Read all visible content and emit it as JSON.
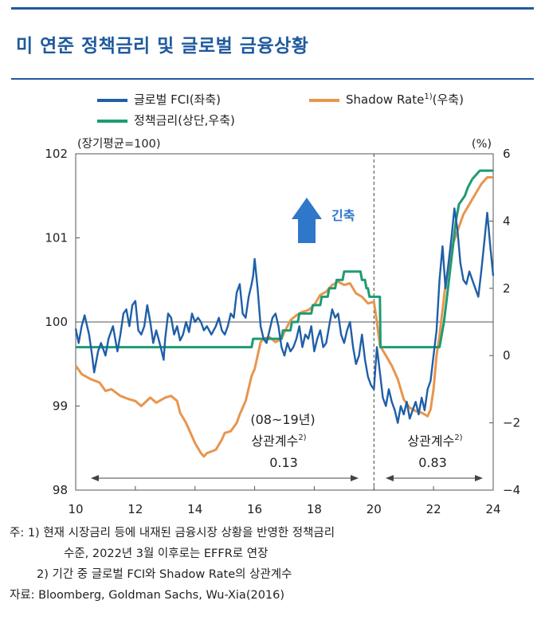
{
  "title": "미 연준 정책금리 및 글로벌 금융상황",
  "legend": {
    "fci": "글로벌 FCI(좌축)",
    "shadow": "Shadow Rate",
    "shadow_sup": "1)",
    "shadow_suffix": "(우축)",
    "policy": "정책금리(상단,우축)"
  },
  "colors": {
    "fci": "#1f5fa8",
    "shadow": "#e8954f",
    "policy": "#1e9b73",
    "arrow": "#2f77c8",
    "accent": "#1f5a9e"
  },
  "chart_data": {
    "type": "line",
    "left_axis_unit": "(장기평균=100)",
    "right_axis_unit": "(%)",
    "ylim_left": [
      98,
      102
    ],
    "ylim_right": [
      -4,
      6
    ],
    "xlim": [
      10,
      24
    ],
    "x_ticks": [
      "10",
      "12",
      "14",
      "16",
      "18",
      "20",
      "22",
      "24"
    ],
    "y_ticks_left": [
      "98",
      "99",
      "100",
      "101",
      "102"
    ],
    "y_ticks_right": [
      "−4",
      "−2",
      "0",
      "2",
      "4",
      "6"
    ],
    "reference_line_left": 100,
    "divider_x": 20,
    "annotations": {
      "tightening": "긴축",
      "period1_label": "(08~19년)",
      "period1_corr_label": "상관계수",
      "period1_corr_sup": "2)",
      "period1_value": "0.13",
      "period2_corr_label": "상관계수",
      "period2_corr_sup": "2)",
      "period2_value": "0.83"
    },
    "series": [
      {
        "name": "글로벌 FCI(좌축)",
        "axis": "left",
        "points": [
          [
            10.0,
            99.92
          ],
          [
            10.1,
            99.75
          ],
          [
            10.2,
            99.95
          ],
          [
            10.3,
            100.08
          ],
          [
            10.45,
            99.85
          ],
          [
            10.55,
            99.6
          ],
          [
            10.62,
            99.4
          ],
          [
            10.75,
            99.65
          ],
          [
            10.85,
            99.75
          ],
          [
            11.0,
            99.6
          ],
          [
            11.1,
            99.8
          ],
          [
            11.25,
            99.95
          ],
          [
            11.4,
            99.65
          ],
          [
            11.5,
            99.85
          ],
          [
            11.6,
            100.1
          ],
          [
            11.7,
            100.15
          ],
          [
            11.8,
            99.95
          ],
          [
            11.9,
            100.2
          ],
          [
            12.0,
            100.25
          ],
          [
            12.1,
            99.9
          ],
          [
            12.2,
            99.85
          ],
          [
            12.3,
            99.95
          ],
          [
            12.4,
            100.2
          ],
          [
            12.5,
            100.0
          ],
          [
            12.6,
            99.75
          ],
          [
            12.7,
            99.9
          ],
          [
            12.85,
            99.7
          ],
          [
            12.95,
            99.55
          ],
          [
            13.0,
            99.8
          ],
          [
            13.1,
            100.1
          ],
          [
            13.2,
            100.05
          ],
          [
            13.3,
            99.85
          ],
          [
            13.4,
            99.95
          ],
          [
            13.5,
            99.78
          ],
          [
            13.6,
            99.85
          ],
          [
            13.7,
            100.0
          ],
          [
            13.8,
            99.88
          ],
          [
            13.9,
            100.1
          ],
          [
            14.0,
            100.0
          ],
          [
            14.1,
            100.05
          ],
          [
            14.2,
            100.0
          ],
          [
            14.3,
            99.9
          ],
          [
            14.4,
            99.95
          ],
          [
            14.55,
            99.85
          ],
          [
            14.7,
            99.95
          ],
          [
            14.8,
            100.05
          ],
          [
            14.9,
            99.9
          ],
          [
            15.0,
            99.85
          ],
          [
            15.1,
            99.95
          ],
          [
            15.2,
            100.1
          ],
          [
            15.3,
            100.05
          ],
          [
            15.4,
            100.35
          ],
          [
            15.5,
            100.45
          ],
          [
            15.6,
            100.1
          ],
          [
            15.7,
            100.05
          ],
          [
            15.8,
            100.3
          ],
          [
            15.9,
            100.45
          ],
          [
            15.95,
            100.55
          ],
          [
            16.0,
            100.75
          ],
          [
            16.1,
            100.4
          ],
          [
            16.2,
            99.95
          ],
          [
            16.3,
            99.8
          ],
          [
            16.4,
            99.75
          ],
          [
            16.5,
            99.9
          ],
          [
            16.6,
            100.05
          ],
          [
            16.7,
            100.1
          ],
          [
            16.8,
            99.95
          ],
          [
            16.9,
            99.7
          ],
          [
            17.0,
            99.6
          ],
          [
            17.1,
            99.75
          ],
          [
            17.2,
            99.65
          ],
          [
            17.3,
            99.7
          ],
          [
            17.4,
            99.8
          ],
          [
            17.5,
            99.95
          ],
          [
            17.6,
            99.7
          ],
          [
            17.7,
            99.85
          ],
          [
            17.8,
            99.8
          ],
          [
            17.9,
            99.95
          ],
          [
            18.0,
            99.65
          ],
          [
            18.1,
            99.8
          ],
          [
            18.2,
            99.9
          ],
          [
            18.3,
            99.7
          ],
          [
            18.4,
            99.75
          ],
          [
            18.5,
            99.95
          ],
          [
            18.6,
            100.15
          ],
          [
            18.7,
            100.05
          ],
          [
            18.8,
            100.1
          ],
          [
            18.9,
            99.85
          ],
          [
            19.0,
            99.75
          ],
          [
            19.1,
            99.9
          ],
          [
            19.2,
            100.0
          ],
          [
            19.3,
            99.7
          ],
          [
            19.4,
            99.5
          ],
          [
            19.5,
            99.6
          ],
          [
            19.6,
            99.85
          ],
          [
            19.7,
            99.55
          ],
          [
            19.8,
            99.35
          ],
          [
            19.9,
            99.25
          ],
          [
            20.0,
            99.2
          ],
          [
            20.1,
            99.7
          ],
          [
            20.2,
            99.4
          ],
          [
            20.3,
            99.1
          ],
          [
            20.4,
            99.0
          ],
          [
            20.5,
            99.2
          ],
          [
            20.6,
            99.05
          ],
          [
            20.7,
            98.95
          ],
          [
            20.8,
            98.8
          ],
          [
            20.9,
            99.0
          ],
          [
            21.0,
            98.9
          ],
          [
            21.1,
            99.05
          ],
          [
            21.2,
            98.85
          ],
          [
            21.3,
            98.95
          ],
          [
            21.4,
            99.05
          ],
          [
            21.5,
            98.9
          ],
          [
            21.6,
            99.1
          ],
          [
            21.7,
            98.95
          ],
          [
            21.8,
            99.2
          ],
          [
            21.9,
            99.3
          ],
          [
            22.0,
            99.6
          ],
          [
            22.1,
            99.9
          ],
          [
            22.2,
            100.5
          ],
          [
            22.3,
            100.9
          ],
          [
            22.4,
            100.4
          ],
          [
            22.5,
            100.7
          ],
          [
            22.6,
            101.0
          ],
          [
            22.7,
            101.35
          ],
          [
            22.8,
            101.1
          ],
          [
            22.9,
            100.7
          ],
          [
            23.0,
            100.5
          ],
          [
            23.1,
            100.45
          ],
          [
            23.2,
            100.6
          ],
          [
            23.3,
            100.5
          ],
          [
            23.4,
            100.4
          ],
          [
            23.5,
            100.3
          ],
          [
            23.6,
            100.6
          ],
          [
            23.7,
            100.95
          ],
          [
            23.8,
            101.3
          ],
          [
            23.9,
            100.9
          ],
          [
            24.0,
            100.55
          ]
        ]
      },
      {
        "name": "Shadow Rate(우축)",
        "axis": "right",
        "points": [
          [
            10.0,
            -0.3
          ],
          [
            10.2,
            -0.55
          ],
          [
            10.5,
            -0.7
          ],
          [
            10.8,
            -0.8
          ],
          [
            11.0,
            -1.05
          ],
          [
            11.2,
            -1.0
          ],
          [
            11.5,
            -1.2
          ],
          [
            11.8,
            -1.3
          ],
          [
            12.0,
            -1.35
          ],
          [
            12.2,
            -1.5
          ],
          [
            12.5,
            -1.25
          ],
          [
            12.7,
            -1.4
          ],
          [
            13.0,
            -1.25
          ],
          [
            13.2,
            -1.2
          ],
          [
            13.4,
            -1.35
          ],
          [
            13.5,
            -1.7
          ],
          [
            13.7,
            -2.0
          ],
          [
            13.9,
            -2.4
          ],
          [
            14.0,
            -2.6
          ],
          [
            14.2,
            -2.9
          ],
          [
            14.3,
            -3.0
          ],
          [
            14.4,
            -2.9
          ],
          [
            14.55,
            -2.85
          ],
          [
            14.7,
            -2.8
          ],
          [
            14.9,
            -2.5
          ],
          [
            15.0,
            -2.3
          ],
          [
            15.2,
            -2.25
          ],
          [
            15.4,
            -2.0
          ],
          [
            15.5,
            -1.75
          ],
          [
            15.7,
            -1.35
          ],
          [
            15.9,
            -0.6
          ],
          [
            16.0,
            -0.4
          ],
          [
            16.2,
            0.4
          ],
          [
            16.3,
            0.5
          ],
          [
            16.5,
            0.55
          ],
          [
            16.7,
            0.4
          ],
          [
            16.9,
            0.5
          ],
          [
            17.0,
            0.7
          ],
          [
            17.2,
            1.05
          ],
          [
            17.4,
            1.2
          ],
          [
            17.6,
            1.3
          ],
          [
            17.8,
            1.35
          ],
          [
            18.0,
            1.5
          ],
          [
            18.2,
            1.8
          ],
          [
            18.4,
            1.9
          ],
          [
            18.6,
            2.1
          ],
          [
            18.8,
            2.2
          ],
          [
            19.0,
            2.1
          ],
          [
            19.2,
            2.15
          ],
          [
            19.4,
            1.85
          ],
          [
            19.6,
            1.75
          ],
          [
            19.8,
            1.55
          ],
          [
            20.0,
            1.6
          ],
          [
            20.1,
            1.0
          ],
          [
            20.2,
            0.3
          ],
          [
            20.4,
            0.0
          ],
          [
            20.6,
            -0.3
          ],
          [
            20.8,
            -0.7
          ],
          [
            21.0,
            -1.3
          ],
          [
            21.2,
            -1.55
          ],
          [
            21.4,
            -1.65
          ],
          [
            21.6,
            -1.7
          ],
          [
            21.8,
            -1.8
          ],
          [
            21.9,
            -1.6
          ],
          [
            22.0,
            -1.0
          ],
          [
            22.1,
            0.0
          ],
          [
            22.2,
            0.6
          ],
          [
            22.4,
            2.1
          ],
          [
            22.6,
            3.2
          ],
          [
            22.8,
            3.7
          ],
          [
            23.0,
            4.2
          ],
          [
            23.2,
            4.5
          ],
          [
            23.4,
            4.8
          ],
          [
            23.6,
            5.1
          ],
          [
            23.8,
            5.3
          ],
          [
            24.0,
            5.3
          ]
        ]
      },
      {
        "name": "정책금리(상단,우축)",
        "axis": "right",
        "points": [
          [
            10.0,
            0.25
          ],
          [
            15.9,
            0.25
          ],
          [
            15.95,
            0.5
          ],
          [
            16.9,
            0.5
          ],
          [
            16.95,
            0.75
          ],
          [
            17.2,
            0.75
          ],
          [
            17.25,
            1.0
          ],
          [
            17.45,
            1.0
          ],
          [
            17.5,
            1.25
          ],
          [
            17.9,
            1.25
          ],
          [
            17.95,
            1.5
          ],
          [
            18.2,
            1.5
          ],
          [
            18.25,
            1.75
          ],
          [
            18.45,
            1.75
          ],
          [
            18.5,
            2.0
          ],
          [
            18.7,
            2.0
          ],
          [
            18.75,
            2.25
          ],
          [
            18.95,
            2.25
          ],
          [
            19.0,
            2.5
          ],
          [
            19.55,
            2.5
          ],
          [
            19.6,
            2.25
          ],
          [
            19.7,
            2.25
          ],
          [
            19.75,
            2.0
          ],
          [
            19.8,
            2.0
          ],
          [
            19.85,
            1.75
          ],
          [
            20.2,
            1.75
          ],
          [
            20.22,
            0.25
          ],
          [
            22.2,
            0.25
          ],
          [
            22.25,
            0.5
          ],
          [
            22.35,
            1.0
          ],
          [
            22.45,
            1.75
          ],
          [
            22.55,
            2.5
          ],
          [
            22.65,
            3.25
          ],
          [
            22.75,
            4.0
          ],
          [
            22.85,
            4.5
          ],
          [
            23.05,
            4.75
          ],
          [
            23.15,
            5.0
          ],
          [
            23.3,
            5.25
          ],
          [
            23.55,
            5.5
          ],
          [
            24.0,
            5.5
          ]
        ]
      }
    ]
  },
  "notes": {
    "line1": "주: 1) 현재 시장금리 등에 내재된 금융시장 상황을 반영한 정책금리",
    "line2": "수준, 2022년 3월 이후로는 EFFR로 연장",
    "line3": "2) 기간 중 글로벌 FCI와 Shadow Rate의 상관계수",
    "source": "자료: Bloomberg, Goldman Sachs, Wu-Xia(2016)"
  }
}
